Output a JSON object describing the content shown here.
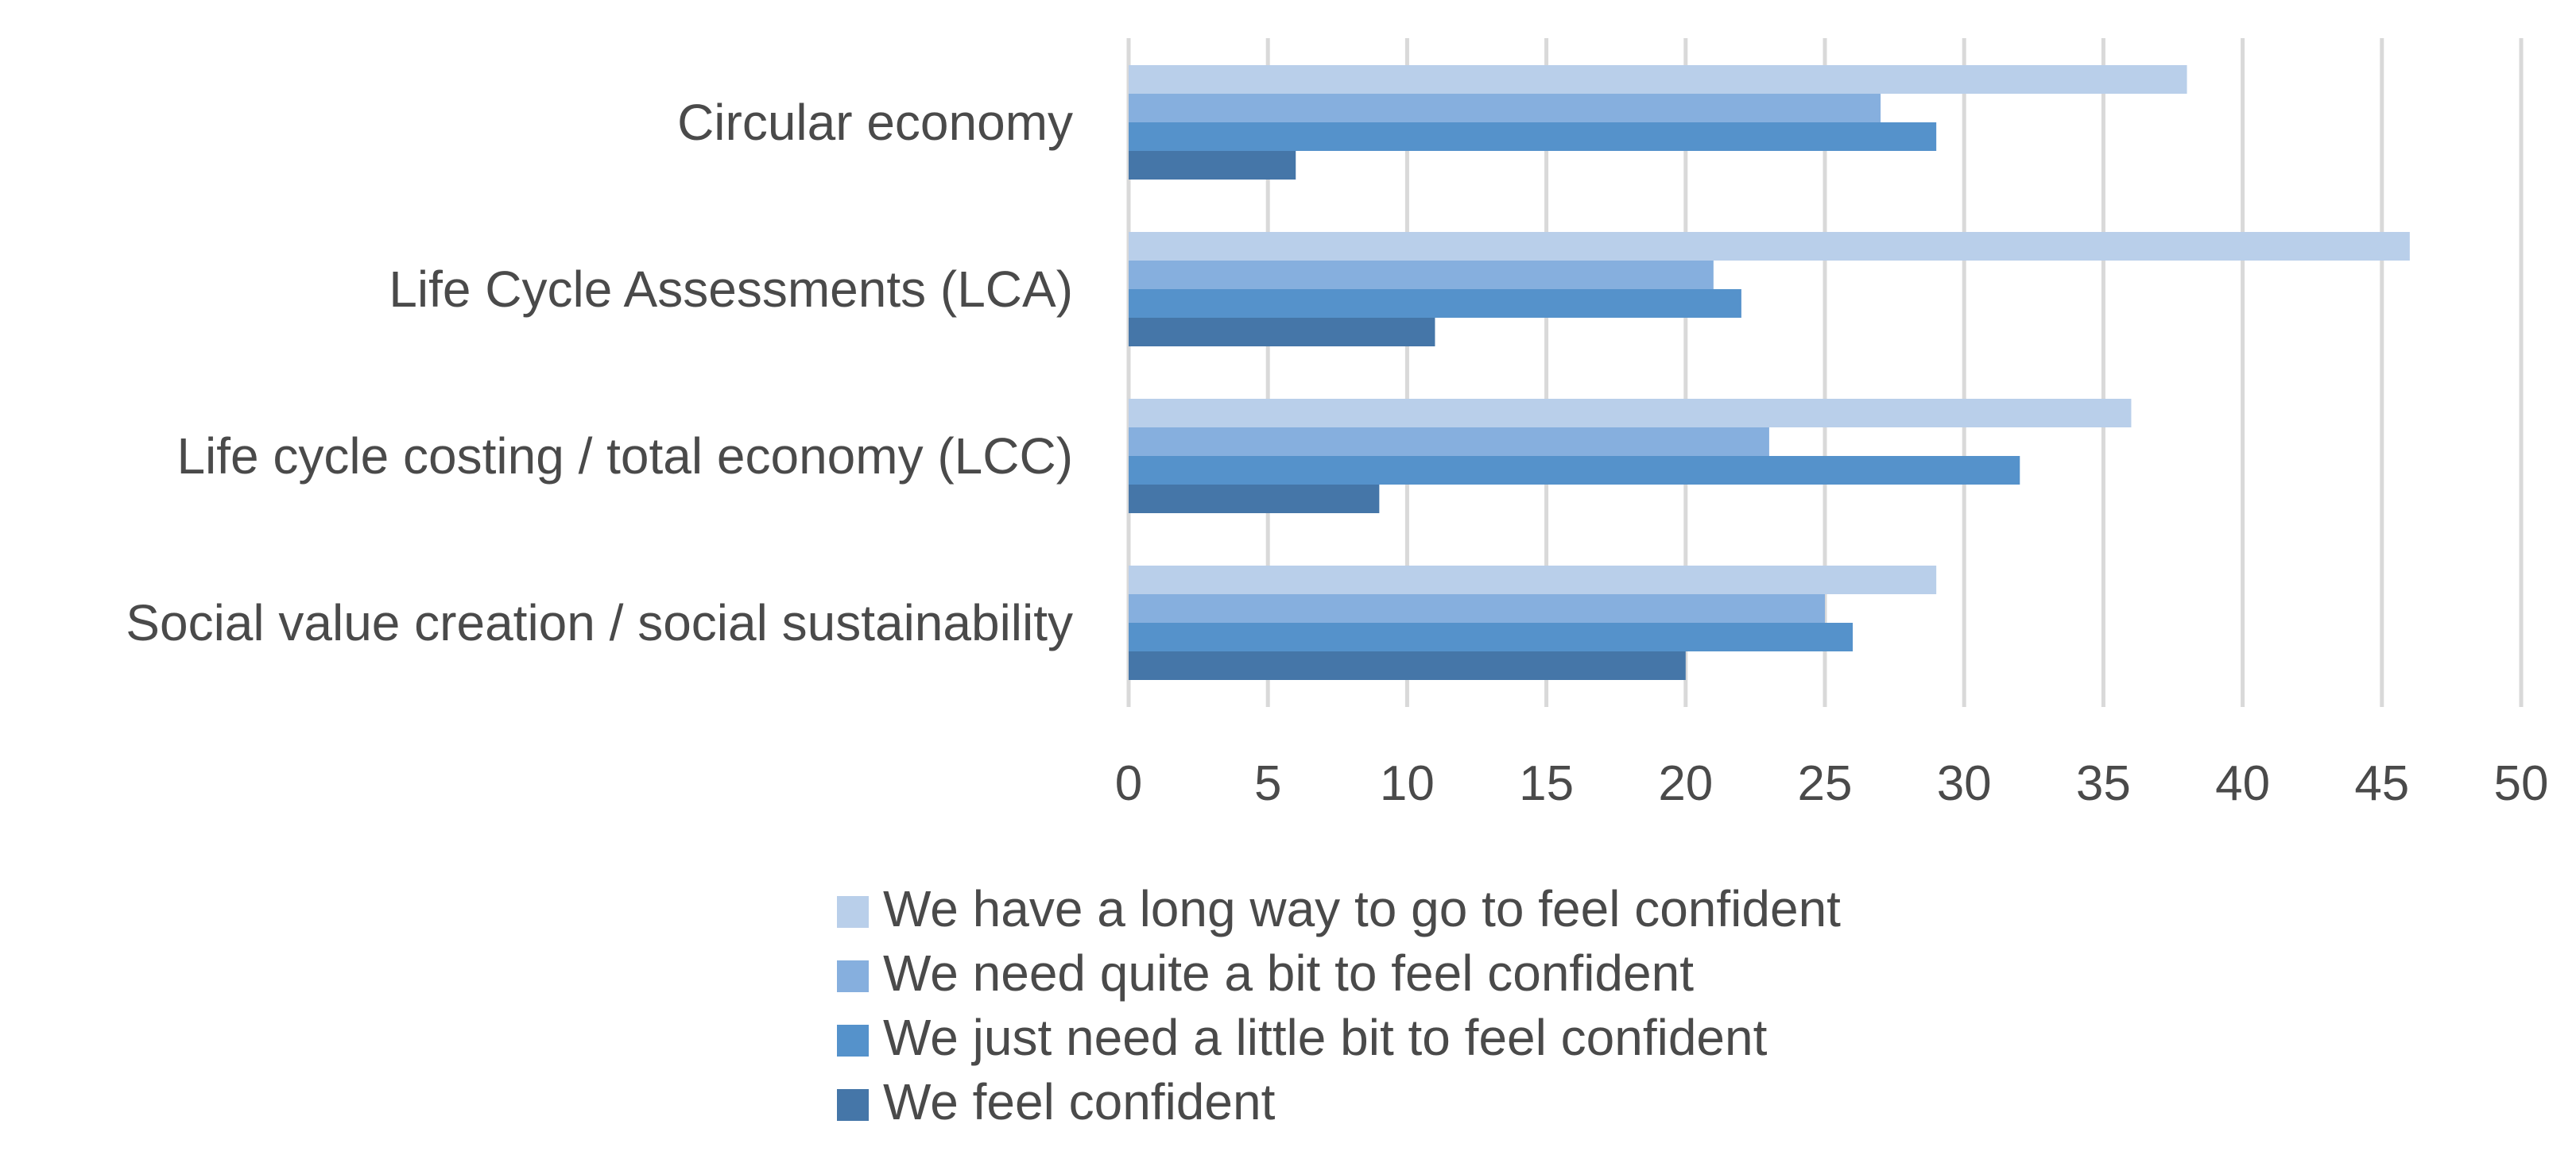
{
  "chart_data": {
    "type": "bar",
    "orientation": "horizontal",
    "title": "",
    "xlabel": "",
    "ylabel": "",
    "categories": [
      "Circular economy",
      "Life Cycle Assessments (LCA)",
      "Life cycle costing / total economy (LCC)",
      "Social value creation / social sustainability"
    ],
    "series": [
      {
        "name": "We have a long way to go to feel confident",
        "values": [
          38,
          46,
          36,
          29
        ],
        "color": "#b9cfea"
      },
      {
        "name": "We need quite a bit to feel confident",
        "values": [
          27,
          21,
          23,
          25
        ],
        "color": "#86afde"
      },
      {
        "name": "We just need a little bit to feel confident",
        "values": [
          29,
          22,
          32,
          26
        ],
        "color": "#5592cb"
      },
      {
        "name": "We feel confident",
        "values": [
          6,
          11,
          9,
          20
        ],
        "color": "#4576a8"
      }
    ],
    "xlim": [
      0,
      50
    ],
    "xticks": [
      "0",
      "5",
      "10",
      "15",
      "20",
      "25",
      "30",
      "35",
      "40",
      "45",
      "50"
    ],
    "grid": "vertical",
    "legend_position": "bottom",
    "gridline_color": "#d9d9d9"
  }
}
